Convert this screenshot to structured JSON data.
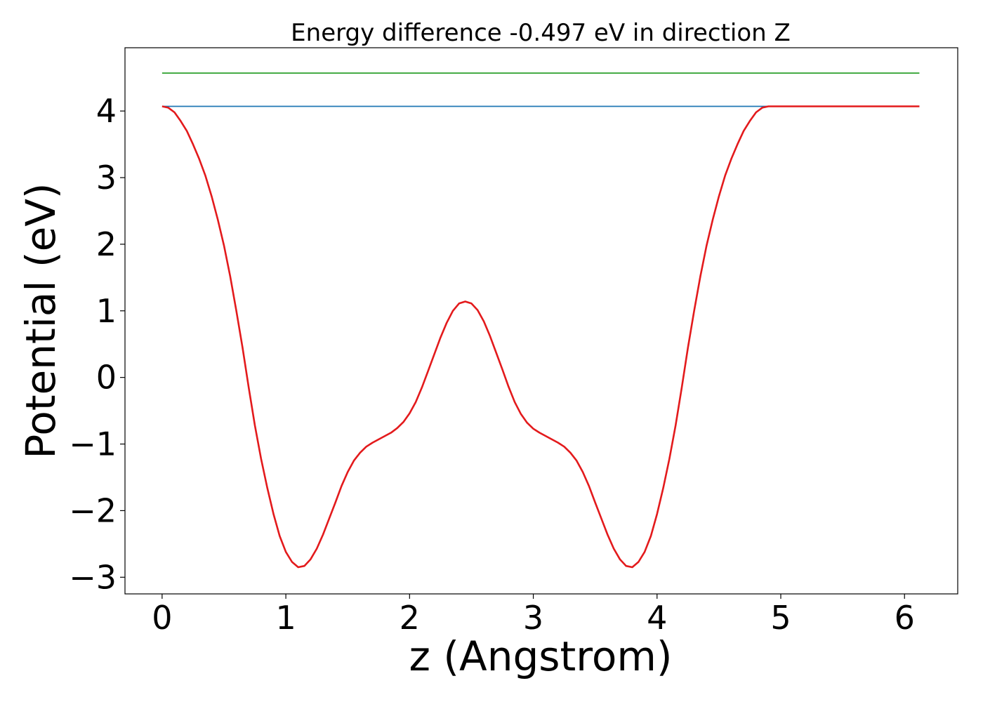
{
  "chart_data": {
    "type": "line",
    "title": "Energy difference -0.497 eV in direction Z",
    "xlabel": "z (Angstrom)",
    "ylabel": "Potential (eV)",
    "xlim": [
      -0.3,
      6.43
    ],
    "ylim": [
      -3.25,
      4.95
    ],
    "x_ticks": [
      0,
      1,
      2,
      3,
      4,
      5,
      6
    ],
    "x_tick_labels": [
      "0",
      "1",
      "2",
      "3",
      "4",
      "5",
      "6"
    ],
    "y_ticks": [
      -3,
      -2,
      -1,
      0,
      1,
      2,
      3,
      4
    ],
    "y_tick_labels": [
      "−3",
      "−2",
      "−1",
      "0",
      "1",
      "2",
      "3",
      "4"
    ],
    "grid": false,
    "series": [
      {
        "color": "#2ca02c",
        "x": [
          0,
          6.12
        ],
        "y": [
          4.57,
          4.57
        ]
      },
      {
        "color": "#1f77b4",
        "x": [
          0,
          6.12
        ],
        "y": [
          4.07,
          4.07
        ]
      },
      {
        "color": "#e31a1c",
        "x": [
          0.0,
          0.05,
          0.1,
          0.15,
          0.2,
          0.25,
          0.3,
          0.35,
          0.4,
          0.45,
          0.5,
          0.55,
          0.6,
          0.65,
          0.7,
          0.75,
          0.8,
          0.85,
          0.9,
          0.95,
          1.0,
          1.05,
          1.1,
          1.15,
          1.2,
          1.25,
          1.3,
          1.35,
          1.4,
          1.45,
          1.5,
          1.55,
          1.6,
          1.65,
          1.7,
          1.75,
          1.8,
          1.85,
          1.9,
          1.95,
          2.0,
          2.05,
          2.1,
          2.15,
          2.2,
          2.25,
          2.3,
          2.35,
          2.4,
          2.45,
          2.5,
          2.55,
          2.6,
          2.65,
          2.7,
          2.75,
          2.8,
          2.85,
          2.9,
          2.95,
          3.0,
          3.05,
          3.1,
          3.15,
          3.2,
          3.25,
          3.3,
          3.35,
          3.4,
          3.45,
          3.5,
          3.55,
          3.6,
          3.65,
          3.7,
          3.75,
          3.8,
          3.85,
          3.9,
          3.95,
          4.0,
          4.05,
          4.1,
          4.15,
          4.2,
          4.25,
          4.3,
          4.35,
          4.4,
          4.45,
          4.5,
          4.55,
          4.6,
          4.65,
          4.7,
          4.75,
          4.8,
          4.85,
          4.9,
          4.95,
          5.0,
          5.05,
          5.1,
          5.15,
          5.2,
          5.25,
          5.3,
          5.35,
          5.4,
          5.45,
          5.5,
          5.55,
          5.6,
          5.65,
          5.7,
          5.75,
          5.8,
          5.85,
          5.9,
          5.95,
          6.0,
          6.05,
          6.1,
          6.12
        ],
        "y": [
          4.07,
          4.05,
          3.98,
          3.85,
          3.7,
          3.5,
          3.28,
          3.03,
          2.72,
          2.37,
          1.98,
          1.52,
          1.0,
          0.45,
          -0.15,
          -0.72,
          -1.22,
          -1.66,
          -2.05,
          -2.38,
          -2.62,
          -2.77,
          -2.85,
          -2.83,
          -2.73,
          -2.57,
          -2.36,
          -2.12,
          -1.88,
          -1.63,
          -1.42,
          -1.25,
          -1.13,
          -1.04,
          -0.98,
          -0.93,
          -0.88,
          -0.83,
          -0.76,
          -0.67,
          -0.54,
          -0.37,
          -0.15,
          0.1,
          0.35,
          0.6,
          0.82,
          1.0,
          1.11,
          1.14,
          1.11,
          1.01,
          0.84,
          0.62,
          0.37,
          0.12,
          -0.14,
          -0.37,
          -0.55,
          -0.68,
          -0.77,
          -0.83,
          -0.88,
          -0.93,
          -0.98,
          -1.04,
          -1.13,
          -1.25,
          -1.42,
          -1.63,
          -1.88,
          -2.12,
          -2.36,
          -2.57,
          -2.73,
          -2.83,
          -2.85,
          -2.77,
          -2.62,
          -2.38,
          -2.05,
          -1.66,
          -1.22,
          -0.72,
          -0.15,
          0.45,
          1.0,
          1.52,
          1.98,
          2.37,
          2.72,
          3.03,
          3.28,
          3.5,
          3.7,
          3.85,
          3.98,
          4.05,
          4.07,
          4.07,
          4.07,
          4.07,
          4.07,
          4.07,
          4.07,
          4.07,
          4.07,
          4.07,
          4.07,
          4.07,
          4.07,
          4.07,
          4.07,
          4.07,
          4.07,
          4.07,
          4.07,
          4.07,
          4.07,
          4.07,
          4.07,
          4.07,
          4.07,
          4.07
        ]
      }
    ]
  }
}
